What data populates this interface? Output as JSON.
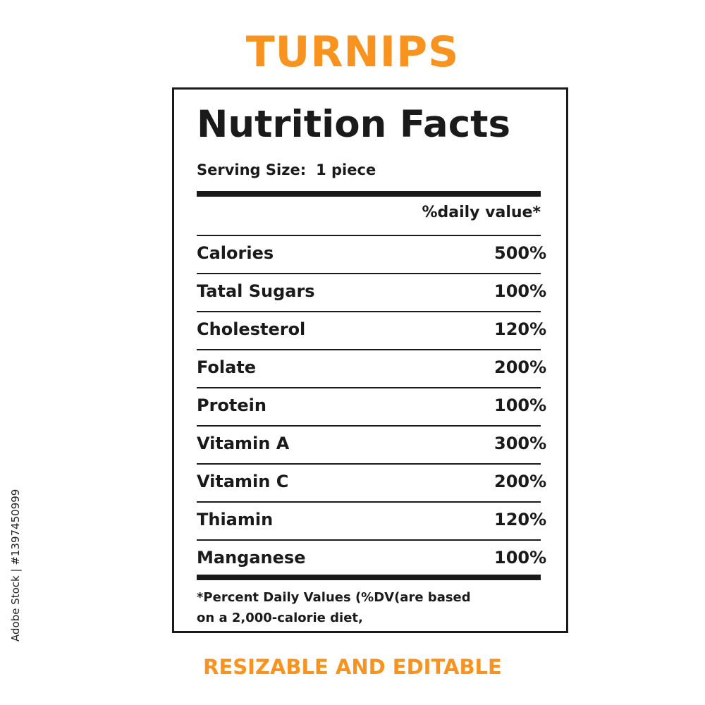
{
  "header": {
    "title": "TURNIPS",
    "subtitle": "RESIZABLE AND EDITABLE"
  },
  "label": {
    "heading": "Nutrition Facts",
    "serving_label": "Serving Size:",
    "serving_value": "1 piece",
    "daily_value_header": "%daily value*",
    "nutrients": [
      {
        "name": "Calories",
        "value": "500%"
      },
      {
        "name": "Tatal Sugars",
        "value": "100%"
      },
      {
        "name": "Cholesterol",
        "value": "120%"
      },
      {
        "name": "Folate",
        "value": "200%"
      },
      {
        "name": "Protein",
        "value": "100%"
      },
      {
        "name": "Vitamin A",
        "value": "300%"
      },
      {
        "name": "Vitamin C",
        "value": "200%"
      },
      {
        "name": "Thiamin",
        "value": "120%"
      },
      {
        "name": "Manganese",
        "value": "100%"
      }
    ],
    "footnote_line1": "*Percent Daily Values (%DV(are  based",
    "footnote_line2": "on a 2,000-calorie diet,"
  },
  "watermark": {
    "stock_id": "Adobe Stock | #1397450999"
  },
  "colors": {
    "accent": "#f7931e",
    "text": "#1a1a1a",
    "background": "#ffffff"
  }
}
